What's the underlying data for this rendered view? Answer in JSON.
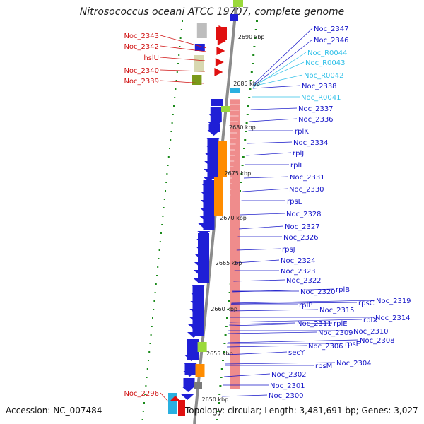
{
  "title": "Nitrosococcus oceani ATCC 19707, complete genome",
  "accession": "Accession: NC_007484",
  "topology": "Topology: circular; Length: 3,481,691 bp; Genes: 3,027",
  "kbp_ticks": [
    "2690 kbp",
    "2685 kbp",
    "2680 kbp",
    "2675 kbp",
    "2670 kbp",
    "2665 kbp",
    "2660 kbp",
    "2655 kbp",
    "2650 kbp"
  ],
  "left_labels": [
    "Noc_2343",
    "Noc_2342",
    "hslU",
    "Noc_2340",
    "Noc_2339",
    "Noc_2296"
  ],
  "right_labels": [
    "Noc_2347",
    "Noc_2346",
    "Noc_R0044",
    "Noc_R0043",
    "Noc_R0042",
    "Noc_2338",
    "Noc_R0041",
    "Noc_2337",
    "Noc_2336",
    "rplK",
    "Noc_2334",
    "rplJ",
    "rplL",
    "Noc_2331",
    "Noc_2330",
    "rpsL",
    "Noc_2328",
    "Noc_2327",
    "Noc_2326",
    "rpsJ",
    "Noc_2324",
    "Noc_2323",
    "Noc_2322",
    "rplB",
    "Noc_2320",
    "rpsC",
    "Noc_2319",
    "rplP",
    "Noc_2315",
    "rplX",
    "Noc_2314",
    "Noc_2311",
    "rplE",
    "Noc_2310",
    "Noc_2309",
    "Noc_2308",
    "rpsE",
    "Noc_2306",
    "secY",
    "rpsM",
    "Noc_2304",
    "Noc_2302",
    "Noc_2301",
    "Noc_2300"
  ],
  "colors": {
    "reverse_strand": "#1f1fd6",
    "forward_strand": "#e01010",
    "rna": "#2ab0e0",
    "translation_pink": "#ef8c8c",
    "orange": "#ff8c00",
    "green": "#9ad93a",
    "backbone": "#8c8c8c",
    "tick_green": "#1a8a1a",
    "label_blue": "#1414c8",
    "label_red": "#d01414",
    "label_cyan": "#30c0e8"
  }
}
